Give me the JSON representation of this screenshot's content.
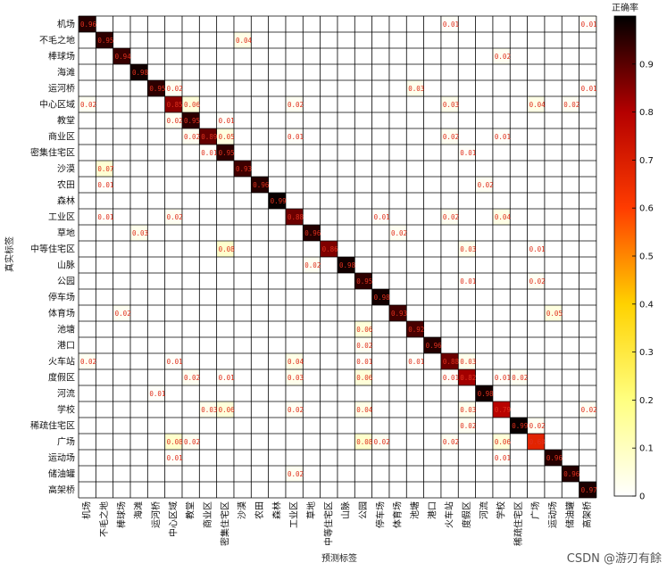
{
  "chart_data": {
    "type": "heatmap",
    "title": "",
    "xlabel": "预测标签",
    "ylabel": "真实标签",
    "colorbar_label": "正确率",
    "colorbar_ticks": [
      "0",
      "0.1",
      "0.2",
      "0.3",
      "0.4",
      "0.5",
      "0.6",
      "0.7",
      "0.8",
      "0.9"
    ],
    "colorbar_range": [
      0,
      1
    ],
    "labels": [
      "机场",
      "不毛之地",
      "棒球场",
      "海滩",
      "运河桥",
      "中心区域",
      "教堂",
      "商业区",
      "密集住宅区",
      "沙漠",
      "农田",
      "森林",
      "工业区",
      "草地",
      "中等住宅区",
      "山脉",
      "公园",
      "停车场",
      "体育场",
      "池塘",
      "港口",
      "火车站",
      "度假区",
      "河流",
      "学校",
      "稀疏住宅区",
      "广场",
      "运动场",
      "储油罐",
      "高架桥"
    ],
    "cells": [
      {
        "r": 0,
        "c": 0,
        "v": 0.96,
        "t": "0.96"
      },
      {
        "r": 0,
        "c": 21,
        "v": 0.01,
        "t": "0.01"
      },
      {
        "r": 0,
        "c": 29,
        "v": 0.01,
        "t": "0.01"
      },
      {
        "r": 1,
        "c": 1,
        "v": 0.95,
        "t": "0.95"
      },
      {
        "r": 1,
        "c": 9,
        "v": 0.04,
        "t": "0.04"
      },
      {
        "r": 2,
        "c": 2,
        "v": 0.94,
        "t": "0.94"
      },
      {
        "r": 2,
        "c": 24,
        "v": 0.02,
        "t": "0.02"
      },
      {
        "r": 3,
        "c": 3,
        "v": 0.98,
        "t": "0.98"
      },
      {
        "r": 4,
        "c": 4,
        "v": 0.95,
        "t": "0.95"
      },
      {
        "r": 4,
        "c": 5,
        "v": 0.02,
        "t": "0.02"
      },
      {
        "r": 4,
        "c": 19,
        "v": 0.03,
        "t": "0.03"
      },
      {
        "r": 4,
        "c": 29,
        "v": 0.01,
        "t": "0.01"
      },
      {
        "r": 5,
        "c": 0,
        "v": 0.02,
        "t": "0.02"
      },
      {
        "r": 5,
        "c": 5,
        "v": 0.85,
        "t": "0.85"
      },
      {
        "r": 5,
        "c": 6,
        "v": 0.06,
        "t": "0.06"
      },
      {
        "r": 5,
        "c": 12,
        "v": 0.02,
        "t": "0.02"
      },
      {
        "r": 5,
        "c": 21,
        "v": 0.03,
        "t": "0.03"
      },
      {
        "r": 5,
        "c": 26,
        "v": 0.04,
        "t": "0.04"
      },
      {
        "r": 5,
        "c": 28,
        "v": 0.02,
        "t": "0.02"
      },
      {
        "r": 6,
        "c": 5,
        "v": 0.02,
        "t": "0.02"
      },
      {
        "r": 6,
        "c": 6,
        "v": 0.95,
        "t": "0.95"
      },
      {
        "r": 6,
        "c": 8,
        "v": 0.01,
        "t": "0.01"
      },
      {
        "r": 7,
        "c": 6,
        "v": 0.02,
        "t": "0.02"
      },
      {
        "r": 7,
        "c": 7,
        "v": 0.89,
        "t": "0.89"
      },
      {
        "r": 7,
        "c": 8,
        "v": 0.05,
        "t": "0.05"
      },
      {
        "r": 7,
        "c": 12,
        "v": 0.01,
        "t": "0.01"
      },
      {
        "r": 7,
        "c": 21,
        "v": 0.02,
        "t": "0.02"
      },
      {
        "r": 7,
        "c": 24,
        "v": 0.01,
        "t": "0.01"
      },
      {
        "r": 8,
        "c": 7,
        "v": 0.01,
        "t": "0.01"
      },
      {
        "r": 8,
        "c": 8,
        "v": 0.95,
        "t": "0.95"
      },
      {
        "r": 8,
        "c": 22,
        "v": 0.01,
        "t": "0.01"
      },
      {
        "r": 9,
        "c": 1,
        "v": 0.07,
        "t": "0.07"
      },
      {
        "r": 9,
        "c": 9,
        "v": 0.93,
        "t": "0.93"
      },
      {
        "r": 10,
        "c": 1,
        "v": 0.01,
        "t": "0.01"
      },
      {
        "r": 10,
        "c": 10,
        "v": 0.96,
        "t": "0.96"
      },
      {
        "r": 10,
        "c": 23,
        "v": 0.02,
        "t": "0.02"
      },
      {
        "r": 11,
        "c": 11,
        "v": 0.99,
        "t": "0.99"
      },
      {
        "r": 12,
        "c": 1,
        "v": 0.01,
        "t": "0.01"
      },
      {
        "r": 12,
        "c": 5,
        "v": 0.02,
        "t": "0.02"
      },
      {
        "r": 12,
        "c": 12,
        "v": 0.88,
        "t": "0.88"
      },
      {
        "r": 12,
        "c": 17,
        "v": 0.01,
        "t": "0.01"
      },
      {
        "r": 12,
        "c": 21,
        "v": 0.02,
        "t": "0.02"
      },
      {
        "r": 12,
        "c": 24,
        "v": 0.04,
        "t": "0.04"
      },
      {
        "r": 13,
        "c": 3,
        "v": 0.03,
        "t": "0.03"
      },
      {
        "r": 13,
        "c": 13,
        "v": 0.96,
        "t": "0.96"
      },
      {
        "r": 13,
        "c": 18,
        "v": 0.02,
        "t": "0.02"
      },
      {
        "r": 14,
        "c": 8,
        "v": 0.08,
        "t": "0.08"
      },
      {
        "r": 14,
        "c": 14,
        "v": 0.86,
        "t": "0.86"
      },
      {
        "r": 14,
        "c": 22,
        "v": 0.03,
        "t": "0.03"
      },
      {
        "r": 14,
        "c": 26,
        "v": 0.01,
        "t": "0.01"
      },
      {
        "r": 15,
        "c": 13,
        "v": 0.02,
        "t": "0.02"
      },
      {
        "r": 15,
        "c": 15,
        "v": 0.98,
        "t": "0.98"
      },
      {
        "r": 16,
        "c": 16,
        "v": 0.95,
        "t": "0.95"
      },
      {
        "r": 16,
        "c": 22,
        "v": 0.01,
        "t": "0.01"
      },
      {
        "r": 16,
        "c": 26,
        "v": 0.02,
        "t": "0.02"
      },
      {
        "r": 17,
        "c": 17,
        "v": 0.98,
        "t": "0.98"
      },
      {
        "r": 18,
        "c": 2,
        "v": 0.02,
        "t": "0.02"
      },
      {
        "r": 18,
        "c": 18,
        "v": 0.93,
        "t": "0.93"
      },
      {
        "r": 18,
        "c": 27,
        "v": 0.05,
        "t": "0.05"
      },
      {
        "r": 19,
        "c": 16,
        "v": 0.06,
        "t": "0.06"
      },
      {
        "r": 19,
        "c": 19,
        "v": 0.92,
        "t": "0.92"
      },
      {
        "r": 20,
        "c": 16,
        "v": 0.02,
        "t": "0.02"
      },
      {
        "r": 20,
        "c": 20,
        "v": 0.96,
        "t": "0.96"
      },
      {
        "r": 21,
        "c": 0,
        "v": 0.02,
        "t": "0.02"
      },
      {
        "r": 21,
        "c": 5,
        "v": 0.01,
        "t": "0.01"
      },
      {
        "r": 21,
        "c": 12,
        "v": 0.04,
        "t": "0.04"
      },
      {
        "r": 21,
        "c": 16,
        "v": 0.01,
        "t": "0.01"
      },
      {
        "r": 21,
        "c": 19,
        "v": 0.01,
        "t": "0.01"
      },
      {
        "r": 21,
        "c": 21,
        "v": 0.88,
        "t": "0.88"
      },
      {
        "r": 21,
        "c": 22,
        "v": 0.03,
        "t": "0.03"
      },
      {
        "r": 22,
        "c": 6,
        "v": 0.02,
        "t": "0.02"
      },
      {
        "r": 22,
        "c": 8,
        "v": 0.01,
        "t": "0.01"
      },
      {
        "r": 22,
        "c": 12,
        "v": 0.03,
        "t": "0.03"
      },
      {
        "r": 22,
        "c": 16,
        "v": 0.06,
        "t": "0.06"
      },
      {
        "r": 22,
        "c": 21,
        "v": 0.01,
        "t": "0.01"
      },
      {
        "r": 22,
        "c": 22,
        "v": 0.82,
        "t": "0.82"
      },
      {
        "r": 22,
        "c": 24,
        "v": 0.01,
        "t": "0.01"
      },
      {
        "r": 22,
        "c": 25,
        "v": 0.02,
        "t": "0.02"
      },
      {
        "r": 23,
        "c": 4,
        "v": 0.01,
        "t": "0.01"
      },
      {
        "r": 23,
        "c": 23,
        "v": 0.98,
        "t": "0.98"
      },
      {
        "r": 24,
        "c": 7,
        "v": 0.03,
        "t": "0.03"
      },
      {
        "r": 24,
        "c": 8,
        "v": 0.06,
        "t": "0.06"
      },
      {
        "r": 24,
        "c": 12,
        "v": 0.02,
        "t": "0.02"
      },
      {
        "r": 24,
        "c": 16,
        "v": 0.04,
        "t": "0.04"
      },
      {
        "r": 24,
        "c": 22,
        "v": 0.03,
        "t": "0.03"
      },
      {
        "r": 24,
        "c": 24,
        "v": 0.79,
        "t": "0.79"
      },
      {
        "r": 24,
        "c": 29,
        "v": 0.02,
        "t": "0.02"
      },
      {
        "r": 25,
        "c": 22,
        "v": 0.02,
        "t": "0.02"
      },
      {
        "r": 25,
        "c": 25,
        "v": 0.99,
        "t": "0.99"
      },
      {
        "r": 25,
        "c": 26,
        "v": 0.02,
        "t": "0.02"
      },
      {
        "r": 26,
        "c": 5,
        "v": 0.08,
        "t": "0.08"
      },
      {
        "r": 26,
        "c": 6,
        "v": 0.02,
        "t": "0.02"
      },
      {
        "r": 26,
        "c": 16,
        "v": 0.08,
        "t": "0.08"
      },
      {
        "r": 26,
        "c": 17,
        "v": 0.02,
        "t": "0.02"
      },
      {
        "r": 26,
        "c": 21,
        "v": 0.02,
        "t": "0.02"
      },
      {
        "r": 26,
        "c": 24,
        "v": 0.06,
        "t": "0.06"
      },
      {
        "r": 26,
        "c": 26,
        "v": 0.68,
        "t": "0.68"
      },
      {
        "r": 27,
        "c": 5,
        "v": 0.01,
        "t": "0.01"
      },
      {
        "r": 27,
        "c": 24,
        "v": 0.01,
        "t": "0.01"
      },
      {
        "r": 27,
        "c": 27,
        "v": 0.96,
        "t": "0.96"
      },
      {
        "r": 28,
        "c": 12,
        "v": 0.02,
        "t": "0.02"
      },
      {
        "r": 28,
        "c": 28,
        "v": 0.96,
        "t": "0.96"
      },
      {
        "r": 29,
        "c": 29,
        "v": 0.97,
        "t": "0.97"
      }
    ]
  },
  "watermark": "CSDN @游刃有餘"
}
